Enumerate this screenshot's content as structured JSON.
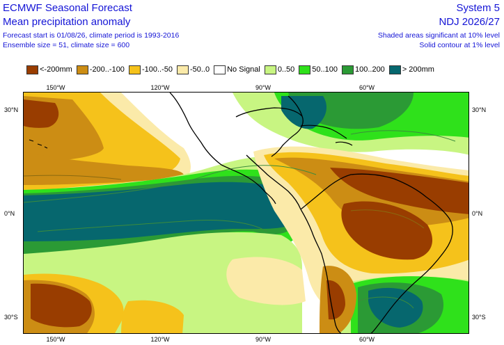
{
  "header": {
    "title": "ECMWF Seasonal Forecast",
    "subtitle": "Mean precipitation anomaly",
    "line3": "Forecast start is 01/08/26, climate period is 1993-2016",
    "line4": "Ensemble size = 51, climate size = 600",
    "system": "System 5",
    "period": "NDJ 2026/27",
    "note1": "Shaded areas significant at 10% level",
    "note2": "Solid contour at 1% level"
  },
  "legend": [
    {
      "label": "<-200mm",
      "color": "#993d00"
    },
    {
      "label": "-200..-100",
      "color": "#cc8d14"
    },
    {
      "label": "-100..-50",
      "color": "#f5c21b"
    },
    {
      "label": "-50..0",
      "color": "#fbeaa9"
    },
    {
      "label": "No Signal",
      "color": "#ffffff"
    },
    {
      "label": "0..50",
      "color": "#c8f582"
    },
    {
      "label": "50..100",
      "color": "#2fe11b"
    },
    {
      "label": "100..200",
      "color": "#2b9a35"
    },
    {
      "label": "> 200mm",
      "color": "#06676e"
    }
  ],
  "axes": {
    "lon_ticks": [
      "150°W",
      "120°W",
      "90°W",
      "60°W"
    ],
    "lat_ticks": [
      "30°N",
      "0°N",
      "30°S"
    ]
  },
  "colors": {
    "text_blue": "#1414d6",
    "land_outline": "#000000",
    "contour": "#3c8c3c"
  }
}
